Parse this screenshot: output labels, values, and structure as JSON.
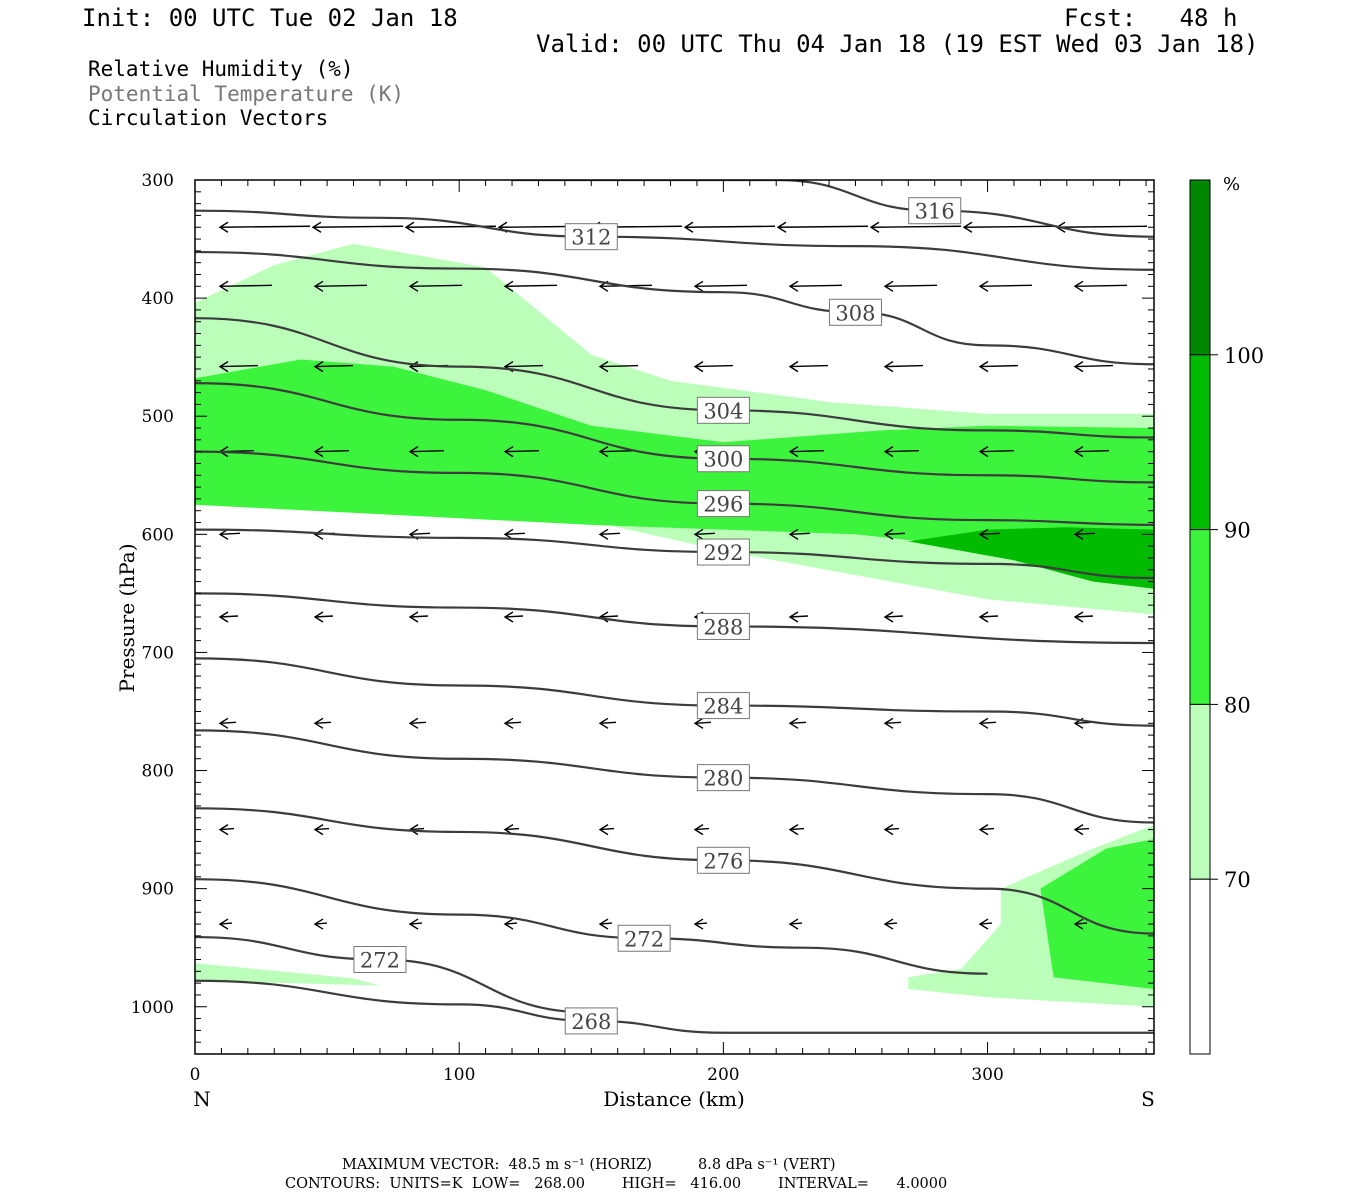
{
  "header": {
    "init": "Init: 00 UTC Tue 02 Jan 18",
    "fcst": "Fcst:   48 h",
    "valid": "Valid: 00 UTC Thu 04 Jan 18 (19 EST Wed 03 Jan 18)"
  },
  "fields": {
    "rh": "Relative Humidity (%)",
    "theta": "Potential Temperature (K)",
    "vectors": "Circulation Vectors"
  },
  "footer": {
    "line1": "MAXIMUM VECTOR:  48.5 m s⁻¹ (HORIZ)          8.8 dPa s⁻¹ (VERT)",
    "line2": "CONTOURS:  UNITS=K  LOW=   268.00        HIGH=   416.00        INTERVAL=      4.0000"
  },
  "colors": {
    "rh70": "#bbffbb",
    "rh80": "#3cf43c",
    "rh90": "#00bb00",
    "rh100": "#008800",
    "contour": "#3c3c3c"
  },
  "chart_data": {
    "type": "contour",
    "xlabel": "Distance (km)",
    "ylabel": "Pressure (hPa)",
    "xlim": [
      0,
      363
    ],
    "ylim_pressure": [
      300,
      1040
    ],
    "x_ticks": [
      0,
      100,
      200,
      300
    ],
    "y_ticks": [
      300,
      400,
      500,
      600,
      700,
      800,
      900,
      1000
    ],
    "endpoint_labels": {
      "left": "N",
      "right": "S"
    },
    "legend": {
      "unit": "%",
      "levels": [
        70,
        80,
        90,
        100
      ],
      "tick_labels": [
        "70",
        "80",
        "90",
        "100"
      ]
    },
    "theta_contours": [
      {
        "value": 268,
        "label": "268",
        "points": [
          [
            0,
            978
          ],
          [
            100,
            998
          ],
          [
            150,
            1012
          ],
          [
            200,
            1022
          ],
          [
            363,
            1022
          ]
        ]
      },
      {
        "value": 272,
        "label": "272",
        "points": [
          [
            0,
            941
          ],
          [
            70,
            960
          ],
          [
            150,
            1005
          ]
        ]
      },
      {
        "value": 272,
        "label": "272",
        "points": [
          [
            0,
            892
          ],
          [
            100,
            922
          ],
          [
            170,
            942
          ],
          [
            230,
            950
          ],
          [
            300,
            972
          ]
        ]
      },
      {
        "value": 276,
        "label": "276",
        "points": [
          [
            0,
            832
          ],
          [
            100,
            852
          ],
          [
            200,
            876
          ],
          [
            300,
            900
          ],
          [
            363,
            938
          ]
        ]
      },
      {
        "value": 280,
        "label": "280",
        "points": [
          [
            0,
            766
          ],
          [
            100,
            790
          ],
          [
            200,
            806
          ],
          [
            300,
            820
          ],
          [
            363,
            844
          ]
        ]
      },
      {
        "value": 284,
        "label": "284",
        "points": [
          [
            0,
            705
          ],
          [
            100,
            728
          ],
          [
            200,
            745
          ],
          [
            300,
            750
          ],
          [
            363,
            762
          ]
        ]
      },
      {
        "value": 288,
        "label": "288",
        "points": [
          [
            0,
            650
          ],
          [
            100,
            662
          ],
          [
            200,
            678
          ],
          [
            363,
            692
          ]
        ]
      },
      {
        "value": 292,
        "label": "292",
        "points": [
          [
            0,
            596
          ],
          [
            100,
            603
          ],
          [
            200,
            615
          ],
          [
            300,
            625
          ],
          [
            363,
            637
          ]
        ]
      },
      {
        "value": 296,
        "label": "296",
        "points": [
          [
            0,
            530
          ],
          [
            100,
            548
          ],
          [
            200,
            574
          ],
          [
            300,
            588
          ],
          [
            363,
            592
          ]
        ]
      },
      {
        "value": 300,
        "label": "300",
        "points": [
          [
            0,
            472
          ],
          [
            100,
            503
          ],
          [
            200,
            536
          ],
          [
            300,
            550
          ],
          [
            363,
            556
          ]
        ]
      },
      {
        "value": 304,
        "label": "304",
        "points": [
          [
            0,
            417
          ],
          [
            100,
            458
          ],
          [
            200,
            495
          ],
          [
            300,
            512
          ],
          [
            363,
            518
          ]
        ]
      },
      {
        "value": 308,
        "label": "308",
        "points": [
          [
            0,
            361
          ],
          [
            100,
            375
          ],
          [
            200,
            395
          ],
          [
            250,
            412
          ],
          [
            300,
            440
          ],
          [
            363,
            456
          ]
        ]
      },
      {
        "value": 312,
        "label": "312",
        "points": [
          [
            0,
            326
          ],
          [
            70,
            332
          ],
          [
            150,
            348
          ],
          [
            250,
            356
          ],
          [
            363,
            376
          ]
        ]
      },
      {
        "value": 316,
        "label": "316",
        "points": [
          [
            120,
            300
          ],
          [
            220,
            300
          ],
          [
            280,
            326
          ],
          [
            363,
            348
          ]
        ]
      }
    ],
    "rh_regions": [
      {
        "level": 70,
        "polygon": [
          [
            0,
            404
          ],
          [
            30,
            372
          ],
          [
            60,
            354
          ],
          [
            110,
            374
          ],
          [
            150,
            448
          ],
          [
            180,
            470
          ],
          [
            240,
            488
          ],
          [
            300,
            498
          ],
          [
            363,
            498
          ],
          [
            363,
            668
          ],
          [
            300,
            655
          ],
          [
            200,
            614
          ],
          [
            120,
            574
          ],
          [
            80,
            568
          ],
          [
            0,
            557
          ]
        ]
      },
      {
        "level": 70,
        "polygon": [
          [
            0,
            963
          ],
          [
            60,
            976
          ],
          [
            70,
            982
          ],
          [
            0,
            978
          ]
        ]
      },
      {
        "level": 70,
        "polygon": [
          [
            270,
            975
          ],
          [
            290,
            968
          ],
          [
            305,
            930
          ],
          [
            305,
            900
          ],
          [
            340,
            866
          ],
          [
            363,
            846
          ],
          [
            363,
            1000
          ],
          [
            300,
            992
          ],
          [
            270,
            985
          ]
        ]
      },
      {
        "level": 80,
        "polygon": [
          [
            0,
            468
          ],
          [
            40,
            452
          ],
          [
            75,
            458
          ],
          [
            110,
            478
          ],
          [
            150,
            508
          ],
          [
            200,
            522
          ],
          [
            260,
            512
          ],
          [
            300,
            508
          ],
          [
            363,
            510
          ],
          [
            363,
            645
          ],
          [
            330,
            630
          ],
          [
            300,
            612
          ],
          [
            250,
            600
          ],
          [
            150,
            592
          ],
          [
            0,
            575
          ]
        ]
      },
      {
        "level": 80,
        "polygon": [
          [
            320,
            900
          ],
          [
            345,
            866
          ],
          [
            363,
            858
          ],
          [
            363,
            985
          ],
          [
            325,
            975
          ]
        ]
      },
      {
        "level": 90,
        "polygon": [
          [
            270,
            606
          ],
          [
            300,
            596
          ],
          [
            330,
            594
          ],
          [
            363,
            596
          ],
          [
            363,
            646
          ],
          [
            340,
            640
          ],
          [
            310,
            622
          ]
        ]
      }
    ]
  }
}
